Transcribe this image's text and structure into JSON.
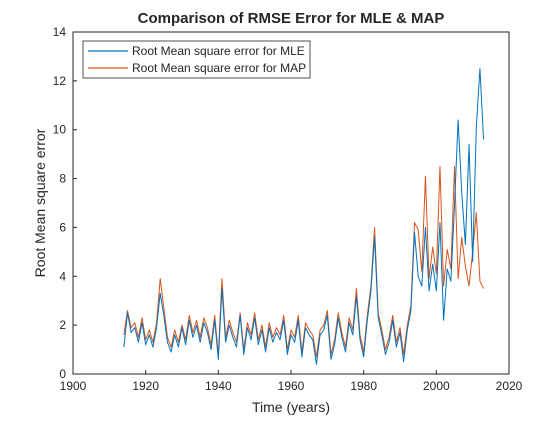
{
  "chart_data": {
    "type": "line",
    "title": "Comparison of RMSE Error for MLE & MAP",
    "xlabel": "Time (years)",
    "ylabel": "Root Mean square error",
    "xlim": [
      1900,
      2020
    ],
    "ylim": [
      0,
      14
    ],
    "xticks": [
      1900,
      1920,
      1940,
      1960,
      1980,
      2000,
      2020
    ],
    "yticks": [
      0,
      2,
      4,
      6,
      8,
      10,
      12,
      14
    ],
    "grid": false,
    "legend_position": "top-left",
    "series": [
      {
        "name": "Root Mean square error for MLE",
        "color": "#0072BD",
        "x": [
          1914,
          1915,
          1916,
          1917,
          1918,
          1919,
          1920,
          1921,
          1922,
          1923,
          1924,
          1925,
          1926,
          1927,
          1928,
          1929,
          1930,
          1931,
          1932,
          1933,
          1934,
          1935,
          1936,
          1937,
          1938,
          1939,
          1940,
          1941,
          1942,
          1943,
          1944,
          1945,
          1946,
          1947,
          1948,
          1949,
          1950,
          1951,
          1952,
          1953,
          1954,
          1955,
          1956,
          1957,
          1958,
          1959,
          1960,
          1961,
          1962,
          1963,
          1964,
          1965,
          1966,
          1967,
          1968,
          1969,
          1970,
          1971,
          1972,
          1973,
          1974,
          1975,
          1976,
          1977,
          1978,
          1979,
          1980,
          1981,
          1982,
          1983,
          1984,
          1985,
          1986,
          1987,
          1988,
          1989,
          1990,
          1991,
          1992,
          1993,
          1994,
          1995,
          1996,
          1997,
          1998,
          1999,
          2000,
          2001,
          2002,
          2003,
          2004,
          2005,
          2006,
          2007,
          2008,
          2009,
          2010,
          2011,
          2012,
          2013
        ],
        "y": [
          1.1,
          2.5,
          1.7,
          1.9,
          1.3,
          2.1,
          1.2,
          1.6,
          1.1,
          1.9,
          3.3,
          2.4,
          1.3,
          0.9,
          1.6,
          1.1,
          1.9,
          1.2,
          2.2,
          1.5,
          2.0,
          1.3,
          2.1,
          1.7,
          1.0,
          2.2,
          0.6,
          3.5,
          1.3,
          2.0,
          1.5,
          1.1,
          2.4,
          0.8,
          1.9,
          1.4,
          2.3,
          1.2,
          1.8,
          0.9,
          1.9,
          1.3,
          1.7,
          1.4,
          2.2,
          0.8,
          1.6,
          1.3,
          2.2,
          0.7,
          1.9,
          1.6,
          1.4,
          0.4,
          1.6,
          1.8,
          2.4,
          0.6,
          1.2,
          2.3,
          1.5,
          0.9,
          2.1,
          1.6,
          3.2,
          1.4,
          0.7,
          2.2,
          3.4,
          5.6,
          2.3,
          1.6,
          0.8,
          1.3,
          2.2,
          1.1,
          1.7,
          0.5,
          1.8,
          2.6,
          5.8,
          4.0,
          3.6,
          6.0,
          3.4,
          4.5,
          3.4,
          6.2,
          2.2,
          4.3,
          3.8,
          6.9,
          10.4,
          7.4,
          5.3,
          9.4,
          4.6,
          10.1,
          12.5,
          9.6
        ]
      },
      {
        "name": "Root Mean square error for MAP",
        "color": "#D95319",
        "x": [
          1914,
          1915,
          1916,
          1917,
          1918,
          1919,
          1920,
          1921,
          1922,
          1923,
          1924,
          1925,
          1926,
          1927,
          1928,
          1929,
          1930,
          1931,
          1932,
          1933,
          1934,
          1935,
          1936,
          1937,
          1938,
          1939,
          1940,
          1941,
          1942,
          1943,
          1944,
          1945,
          1946,
          1947,
          1948,
          1949,
          1950,
          1951,
          1952,
          1953,
          1954,
          1955,
          1956,
          1957,
          1958,
          1959,
          1960,
          1961,
          1962,
          1963,
          1964,
          1965,
          1966,
          1967,
          1968,
          1969,
          1970,
          1971,
          1972,
          1973,
          1974,
          1975,
          1976,
          1977,
          1978,
          1979,
          1980,
          1981,
          1982,
          1983,
          1984,
          1985,
          1986,
          1987,
          1988,
          1989,
          1990,
          1991,
          1992,
          1993,
          1994,
          1995,
          1996,
          1997,
          1998,
          1999,
          2000,
          2001,
          2002,
          2003,
          2004,
          2005,
          2006,
          2007,
          2008,
          2009,
          2010,
          2011,
          2012,
          2013
        ],
        "y": [
          1.6,
          2.6,
          1.9,
          2.1,
          1.5,
          2.3,
          1.4,
          1.8,
          1.3,
          2.1,
          3.9,
          2.7,
          1.5,
          1.1,
          1.8,
          1.3,
          2.0,
          1.4,
          2.4,
          1.7,
          2.2,
          1.5,
          2.3,
          1.9,
          1.2,
          2.4,
          0.8,
          3.9,
          1.5,
          2.2,
          1.7,
          1.3,
          2.5,
          1.0,
          2.1,
          1.6,
          2.5,
          1.4,
          2.0,
          1.1,
          2.1,
          1.5,
          1.9,
          1.6,
          2.4,
          1.0,
          1.8,
          1.5,
          2.4,
          0.9,
          2.1,
          1.8,
          1.6,
          0.7,
          1.8,
          2.0,
          2.6,
          0.8,
          1.4,
          2.5,
          1.7,
          1.1,
          2.3,
          1.8,
          3.5,
          1.6,
          0.9,
          2.4,
          3.6,
          6.0,
          2.5,
          1.8,
          1.0,
          1.5,
          2.4,
          1.3,
          1.9,
          0.8,
          2.0,
          2.8,
          6.2,
          5.9,
          4.2,
          8.1,
          3.9,
          5.2,
          4.1,
          8.5,
          3.6,
          5.1,
          4.3,
          8.5,
          3.9,
          5.6,
          4.4,
          3.6,
          5.0,
          6.6,
          3.8,
          3.5
        ]
      }
    ]
  }
}
